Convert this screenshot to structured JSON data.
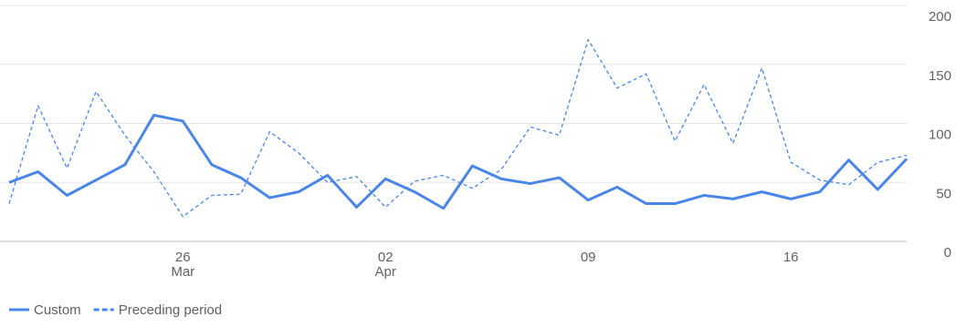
{
  "chart_data": {
    "type": "line",
    "categories": [
      null,
      null,
      null,
      null,
      null,
      null,
      "26",
      null,
      null,
      null,
      null,
      null,
      null,
      "02",
      null,
      null,
      null,
      null,
      null,
      null,
      "09",
      null,
      null,
      null,
      null,
      null,
      null,
      "16",
      null,
      null,
      null,
      null
    ],
    "category_sublabels": [
      null,
      null,
      null,
      null,
      null,
      null,
      "Mar",
      null,
      null,
      null,
      null,
      null,
      null,
      "Apr",
      null,
      null,
      null,
      null,
      null,
      null,
      null,
      null,
      null,
      null,
      null,
      null,
      null,
      null,
      null,
      null,
      null,
      null
    ],
    "series": [
      {
        "name": "Custom",
        "color": "#4a86e8",
        "dashed": false,
        "values": [
          50,
          59,
          39,
          52,
          65,
          107,
          102,
          65,
          54,
          37,
          42,
          56,
          29,
          53,
          42,
          28,
          64,
          53,
          49,
          54,
          35,
          46,
          32,
          32,
          39,
          36,
          42,
          36,
          42,
          69,
          44,
          70
        ]
      },
      {
        "name": "Preceding period",
        "color": "#4a86e8",
        "dashed": true,
        "values": [
          32,
          115,
          62,
          127,
          90,
          59,
          21,
          39,
          40,
          93,
          75,
          50,
          55,
          29,
          51,
          56,
          45,
          61,
          97,
          90,
          171,
          130,
          142,
          85,
          133,
          83,
          147,
          67,
          52,
          48,
          67,
          73
        ]
      }
    ],
    "ylim": [
      0,
      200
    ],
    "yticks": [
      0,
      50,
      100,
      150,
      200
    ],
    "grid": true,
    "legend": "bottom-left"
  }
}
